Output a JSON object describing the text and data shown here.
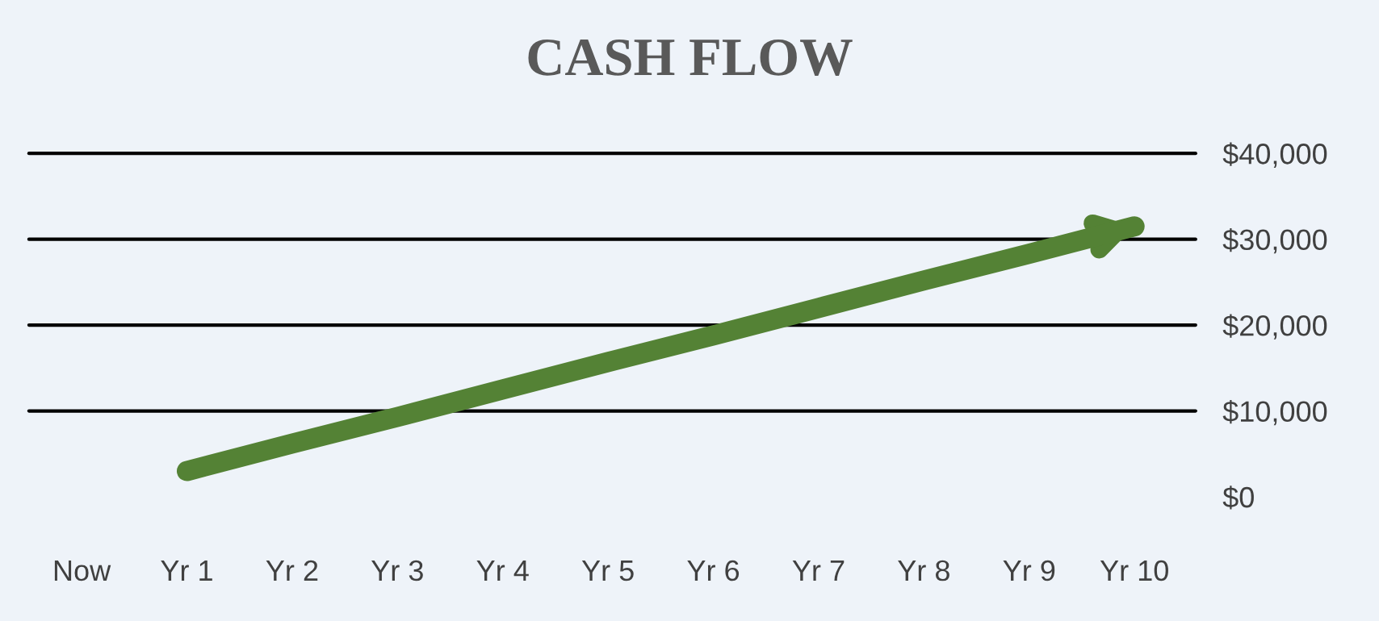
{
  "chart_data": {
    "type": "line",
    "title": "CASH FLOW",
    "categories": [
      "Now",
      "Yr 1",
      "Yr 2",
      "Yr 3",
      "Yr 4",
      "Yr 5",
      "Yr 6",
      "Yr 7",
      "Yr 8",
      "Yr 9",
      "Yr 10"
    ],
    "series": [
      {
        "color": "#548235",
        "values": [
          null,
          3000,
          6200,
          9300,
          12500,
          15700,
          18800,
          22000,
          25200,
          28300,
          31500
        ]
      }
    ],
    "ylim": [
      0,
      40000
    ],
    "yticks": [
      {
        "value": 0,
        "label": "$0"
      },
      {
        "value": 10000,
        "label": "$10,000"
      },
      {
        "value": 20000,
        "label": "$20,000"
      },
      {
        "value": 30000,
        "label": "$30,000"
      },
      {
        "value": 40000,
        "label": "$40,000"
      }
    ],
    "grid": "y",
    "line_style": "solid"
  }
}
